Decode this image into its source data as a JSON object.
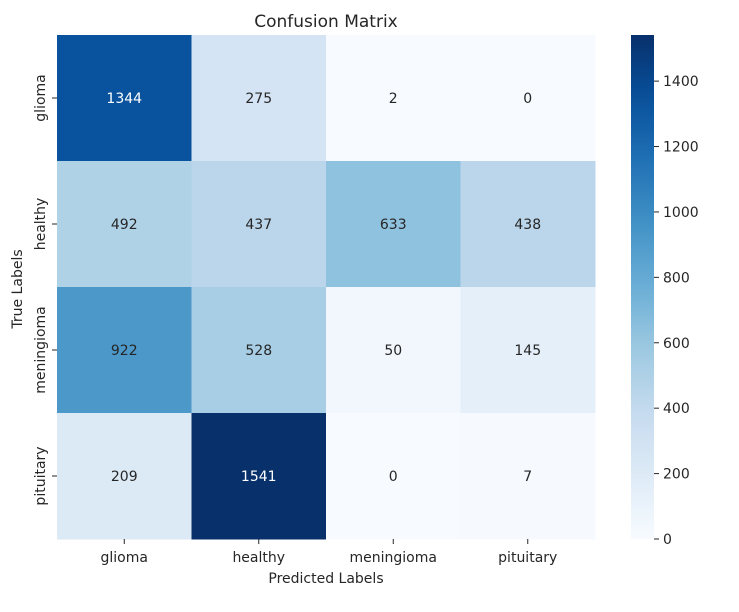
{
  "chart_data": {
    "type": "heatmap",
    "title": "Confusion Matrix",
    "xlabel": "Predicted Labels",
    "ylabel": "True Labels",
    "x_categories": [
      "glioma",
      "healthy",
      "meningioma",
      "pituitary"
    ],
    "y_categories": [
      "glioma",
      "healthy",
      "meningioma",
      "pituitary"
    ],
    "values": [
      [
        1344,
        275,
        2,
        0
      ],
      [
        492,
        437,
        633,
        438
      ],
      [
        922,
        528,
        50,
        145
      ],
      [
        209,
        1541,
        0,
        7
      ]
    ],
    "colormap": "Blues",
    "color_range": [
      0,
      1541
    ],
    "colorbar_ticks": [
      0,
      200,
      400,
      600,
      800,
      1000,
      1200,
      1400
    ],
    "colors": {
      "low": "#f7fbff",
      "high": "#08306b",
      "text_dark": "#262626",
      "text_light": "#ffffff"
    }
  }
}
